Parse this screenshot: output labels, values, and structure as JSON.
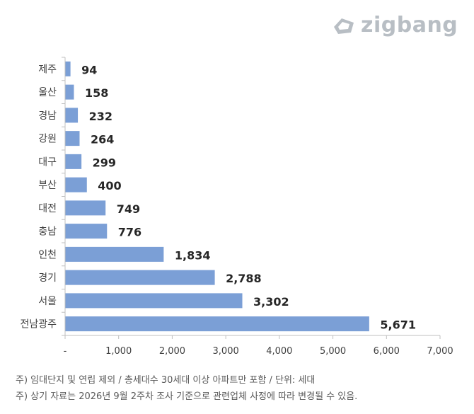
{
  "logo": {
    "text": "zigbang",
    "icon": "zigbang-logo-icon"
  },
  "colors": {
    "bar": "#7b9fd6",
    "axis": "#bfbfbf",
    "label": "#404040",
    "value": "#262626",
    "logo": "#b8bec4"
  },
  "chart_data": {
    "type": "bar",
    "orientation": "horizontal",
    "categories": [
      "제주",
      "울산",
      "경남",
      "강원",
      "대구",
      "부산",
      "대전",
      "충남",
      "인천",
      "경기",
      "서울",
      "전남광주"
    ],
    "values": [
      94,
      158,
      232,
      264,
      299,
      400,
      749,
      776,
      1834,
      2788,
      3302,
      5671
    ],
    "value_labels": [
      "94",
      "158",
      "232",
      "264",
      "299",
      "400",
      "749",
      "776",
      "1,834",
      "2,788",
      "3,302",
      "5,671"
    ],
    "xlim": [
      0,
      7000
    ],
    "x_ticks": [
      0,
      1000,
      2000,
      3000,
      4000,
      5000,
      6000,
      7000
    ],
    "x_tick_labels": [
      "-",
      "1,000",
      "2,000",
      "3,000",
      "4,000",
      "5,000",
      "6,000",
      "7,000"
    ],
    "grid": false
  },
  "notes": [
    "주) 임대단지 및 연립 제외 / 총세대수 30세대 이상 아파트만 포함 / 단위: 세대",
    "주) 상기 자료는 2026년 9월 2주차 조사 기준으로 관련업체 사정에 따라 변경될 수 있음."
  ]
}
